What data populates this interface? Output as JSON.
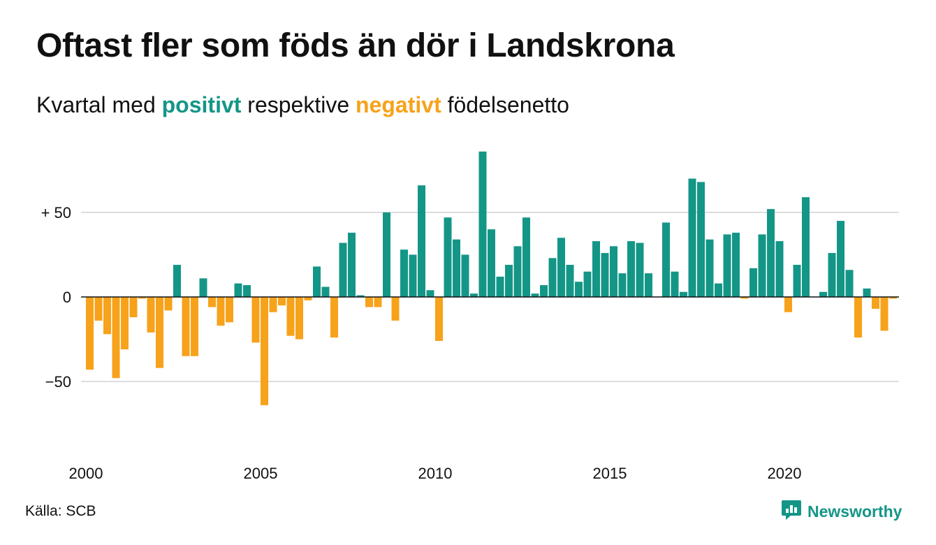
{
  "title": "Oftast fler som föds än dör i Landskrona",
  "subtitle": {
    "prefix": "Kvartal med ",
    "positive_word": "positivt",
    "middle": " respektive ",
    "negative_word": "negativt",
    "suffix": " födelsenetto"
  },
  "source": "Källa: SCB",
  "logo": {
    "text": "Newsworthy",
    "icon": "newsworthy-chart-bubble-icon"
  },
  "colors": {
    "positive": "#149687",
    "negative": "#f7a21b",
    "grid": "#dddddd",
    "zero": "#111111"
  },
  "chart_data": {
    "type": "bar",
    "x_start": 2000,
    "x_step": 0.25,
    "values": [
      -43,
      -14,
      -22,
      -48,
      -31,
      -12,
      -1,
      -21,
      -42,
      -8,
      19,
      -35,
      -35,
      11,
      -6,
      -17,
      -15,
      8,
      7,
      -27,
      -64,
      -9,
      -5,
      -23,
      -25,
      -2,
      18,
      6,
      -24,
      32,
      38,
      1,
      -6,
      -6,
      50,
      -14,
      28,
      25,
      66,
      4,
      -26,
      47,
      34,
      25,
      2,
      86,
      40,
      12,
      19,
      30,
      47,
      2,
      7,
      23,
      35,
      19,
      9,
      15,
      33,
      26,
      30,
      14,
      33,
      32,
      14,
      0,
      44,
      15,
      3,
      70,
      68,
      34,
      8,
      37,
      38,
      -1,
      17,
      37,
      52,
      33,
      -9,
      19,
      59,
      0,
      3,
      26,
      45,
      16,
      -24,
      5,
      -7,
      -20,
      -1
    ],
    "xticks": [
      "2000",
      "2005",
      "2010",
      "2015",
      "2020"
    ],
    "xtick_values": [
      2000,
      2005,
      2010,
      2015,
      2020
    ],
    "yticks": [
      "−50",
      "0",
      "+ 50"
    ],
    "ytick_values": [
      -50,
      0,
      50
    ],
    "ylim": [
      -90,
      95
    ],
    "grid": true,
    "legend": "none"
  }
}
